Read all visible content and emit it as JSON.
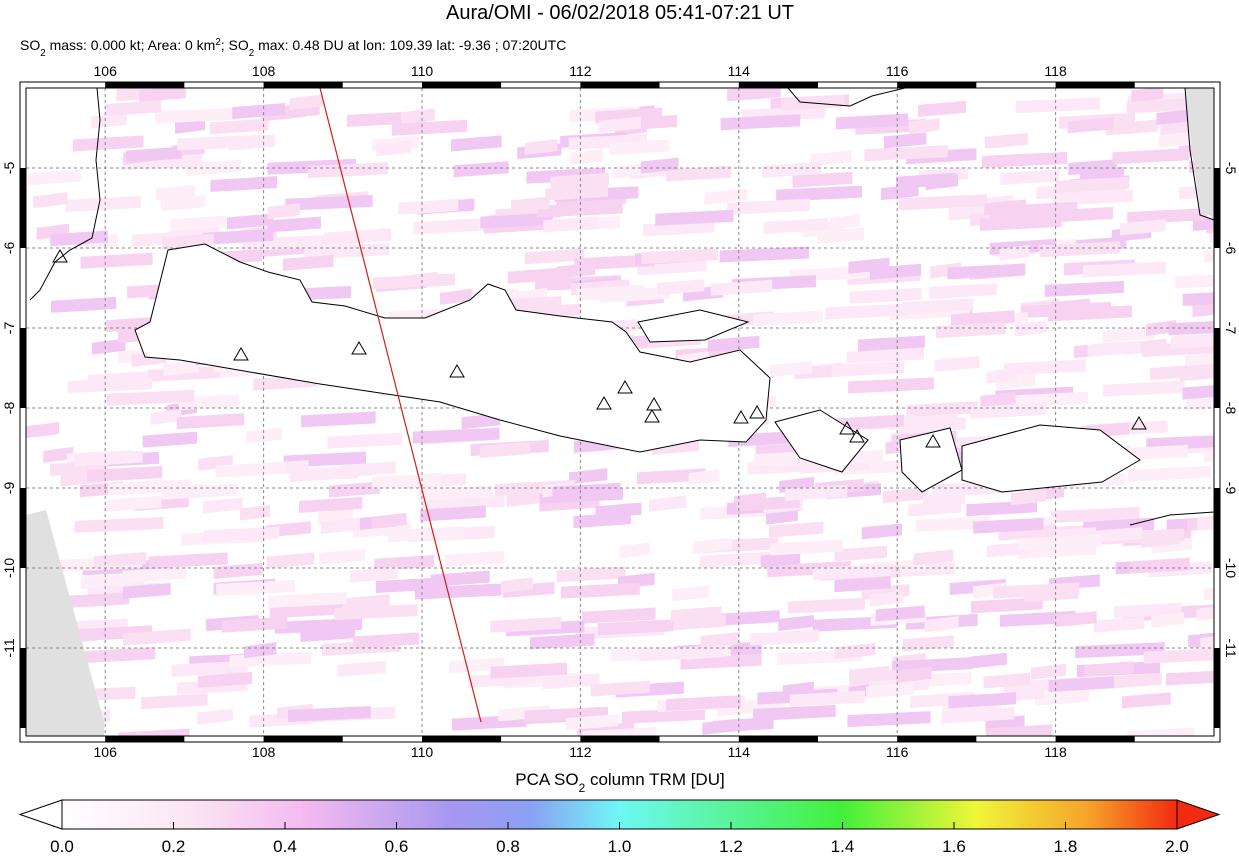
{
  "map": {
    "title": "Aura/OMI - 06/02/2018 05:41-07:21 UT",
    "subtitle": [
      {
        "text": "SO"
      },
      {
        "text": "2",
        "sub": true
      },
      {
        "text": " mass: 0.000 kt; Area: 0 km"
      },
      {
        "text": "2",
        "sup": true
      },
      {
        "text": "; SO"
      },
      {
        "text": "2",
        "sub": true
      },
      {
        "text": " max: 0.48 DU at lon: 109.39 lat: -9.36 ; 07:20UTC"
      }
    ],
    "xlim": [
      105,
      120
    ],
    "ylim": [
      -12.1,
      -4
    ],
    "xticks": [
      106,
      108,
      110,
      112,
      114,
      116,
      118
    ],
    "yticks": [
      -5,
      -6,
      -7,
      -8,
      -9,
      -10,
      -11
    ],
    "colorbar": {
      "label": [
        {
          "text": "PCA SO"
        },
        {
          "text": "2",
          "sub": true
        },
        {
          "text": " column TRM [DU]"
        }
      ],
      "lim": [
        0,
        2
      ],
      "ticks": [
        {
          "value": 0,
          "label": "0.0"
        },
        {
          "value": 0.2,
          "label": "0.2"
        },
        {
          "value": 0.4,
          "label": "0.4"
        },
        {
          "value": 0.6,
          "label": "0.6"
        },
        {
          "value": 0.8,
          "label": "0.8"
        },
        {
          "value": 1,
          "label": "1.0"
        },
        {
          "value": 1.2,
          "label": "1.2"
        },
        {
          "value": 1.4,
          "label": "1.4"
        },
        {
          "value": 1.6,
          "label": "1.6"
        },
        {
          "value": 1.8,
          "label": "1.8"
        },
        {
          "value": 2,
          "label": "2.0"
        }
      ]
    }
  }
}
